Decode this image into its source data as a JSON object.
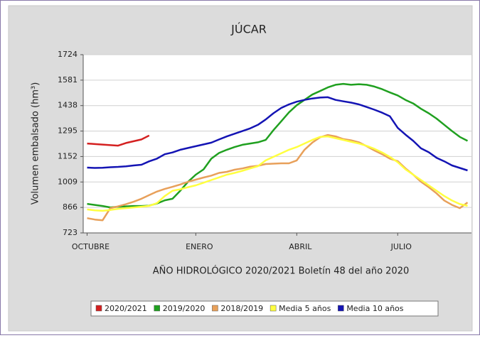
{
  "chart_data": {
    "type": "line",
    "title": "JÚCAR",
    "x_label": "AÑO HIDROLÓGICO 2020/2021 Boletín 48 del año 2020",
    "y_label": "Volumen embalsado (hm³)",
    "categories": [
      "OCTUBRE",
      null,
      null,
      null,
      null,
      null,
      null,
      null,
      null,
      null,
      null,
      null,
      null,
      null,
      "ENERO",
      null,
      null,
      null,
      null,
      null,
      null,
      null,
      null,
      null,
      null,
      null,
      null,
      "ABRIL",
      null,
      null,
      null,
      null,
      null,
      null,
      null,
      null,
      null,
      null,
      null,
      null,
      "JULIO",
      null,
      null,
      null,
      null,
      null,
      null,
      null,
      null,
      null
    ],
    "ylim": [
      723,
      1724
    ],
    "yticks": [
      723,
      866,
      1009,
      1152,
      1295,
      1438,
      1581,
      1724
    ],
    "grid": true,
    "legend": "bottom",
    "series": [
      {
        "name": "2020/2021",
        "color": "#d42020",
        "values": [
          1225,
          1222,
          1219,
          1216,
          1213,
          1228,
          1238,
          1248,
          1270,
          null,
          null,
          null,
          null,
          null,
          null,
          null,
          null,
          null,
          null,
          null,
          null,
          null,
          null,
          null,
          null,
          null,
          null,
          null,
          null,
          null,
          null,
          null,
          null,
          null,
          null,
          null,
          null,
          null,
          null,
          null,
          null,
          null,
          null,
          null,
          null,
          null,
          null,
          null,
          null,
          null
        ]
      },
      {
        "name": "2019/2020",
        "color": "#20a020",
        "values": [
          886,
          880,
          874,
          866,
          870,
          872,
          874,
          874,
          876,
          888,
          906,
          915,
          960,
          1010,
          1050,
          1080,
          1140,
          1172,
          1190,
          1205,
          1218,
          1225,
          1232,
          1245,
          1300,
          1350,
          1400,
          1440,
          1470,
          1500,
          1520,
          1540,
          1555,
          1560,
          1555,
          1558,
          1555,
          1545,
          1530,
          1512,
          1495,
          1470,
          1450,
          1420,
          1395,
          1365,
          1330,
          1295,
          1262,
          1240
        ]
      },
      {
        "name": "2018/2019",
        "color": "#e8a05a",
        "values": [
          806,
          798,
          794,
          862,
          872,
          884,
          898,
          915,
          935,
          955,
          970,
          982,
          995,
          1010,
          1022,
          1034,
          1045,
          1060,
          1066,
          1078,
          1085,
          1095,
          1100,
          1110,
          1112,
          1114,
          1114,
          1130,
          1190,
          1230,
          1260,
          1273,
          1265,
          1250,
          1243,
          1232,
          1210,
          1186,
          1165,
          1140,
          1126,
          1085,
          1050,
          1010,
          980,
          945,
          905,
          880,
          862,
          894
        ]
      },
      {
        "name": "Media 5 años",
        "color": "#ffff40",
        "values": [
          855,
          850,
          847,
          852,
          858,
          862,
          866,
          870,
          875,
          890,
          930,
          960,
          968,
          980,
          990,
          1005,
          1020,
          1035,
          1050,
          1060,
          1072,
          1085,
          1098,
          1130,
          1150,
          1170,
          1190,
          1205,
          1225,
          1245,
          1262,
          1265,
          1255,
          1245,
          1235,
          1225,
          1212,
          1195,
          1175,
          1150,
          1120,
          1080,
          1050,
          1020,
          990,
          960,
          930,
          905,
          885,
          875
        ]
      },
      {
        "name": "Media 10 años",
        "color": "#1414b4",
        "values": [
          1090,
          1088,
          1089,
          1092,
          1094,
          1097,
          1102,
          1106,
          1125,
          1140,
          1165,
          1175,
          1190,
          1200,
          1210,
          1220,
          1230,
          1248,
          1265,
          1280,
          1295,
          1310,
          1330,
          1360,
          1395,
          1425,
          1445,
          1460,
          1470,
          1478,
          1483,
          1485,
          1470,
          1462,
          1455,
          1445,
          1430,
          1415,
          1398,
          1378,
          1313,
          1275,
          1240,
          1198,
          1176,
          1145,
          1125,
          1102,
          1088,
          1074
        ]
      }
    ]
  }
}
